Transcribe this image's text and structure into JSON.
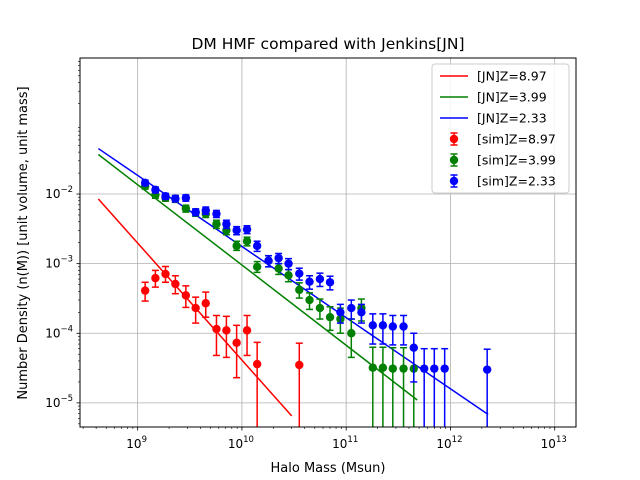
{
  "chart_data": {
    "type": "scatter",
    "title": "DM HMF compared with Jenkins[JN]",
    "xlabel": "Halo Mass (Msun)",
    "ylabel": "Number Density (n(M)) [unit volume, unit mass]",
    "xscale": "log",
    "yscale": "log",
    "xlim": [
      280000000.0,
      16000000000000.0
    ],
    "ylim": [
      4.5e-06,
      0.9
    ],
    "xticks": [
      {
        "value": 1000000000.0,
        "label": "10",
        "exp": "9"
      },
      {
        "value": 10000000000.0,
        "label": "10",
        "exp": "10"
      },
      {
        "value": 100000000000.0,
        "label": "10",
        "exp": "11"
      },
      {
        "value": 1000000000000.0,
        "label": "10",
        "exp": "12"
      },
      {
        "value": 10000000000000.0,
        "label": "10",
        "exp": "13"
      }
    ],
    "yticks": [
      {
        "value": 1e-05,
        "label": "10",
        "exp": "−5"
      },
      {
        "value": 0.0001,
        "label": "10",
        "exp": "−4"
      },
      {
        "value": 0.001,
        "label": "10",
        "exp": "−3"
      },
      {
        "value": 0.01,
        "label": "10",
        "exp": "−2"
      }
    ],
    "grid": true,
    "legend_position": "top-right",
    "lines": [
      {
        "name": "[JN]Z=8.97",
        "color": "#ff0000",
        "x": [
          420000000.0,
          30000000000.0
        ],
        "y": [
          0.0085,
          6.5e-06
        ]
      },
      {
        "name": "[JN]Z=3.99",
        "color": "#008000",
        "x": [
          420000000.0,
          480000000000.0
        ],
        "y": [
          0.037,
          1.1e-05
        ]
      },
      {
        "name": "[JN]Z=2.33",
        "color": "#0000ff",
        "x": [
          420000000.0,
          2300000000000.0
        ],
        "y": [
          0.045,
          6.8e-06
        ]
      }
    ],
    "series": [
      {
        "name": "[sim]Z=8.97",
        "color": "#ff0000",
        "x": [
          1180000000.0,
          1480000000.0,
          1850000000.0,
          2300000000.0,
          2900000000.0,
          3600000000.0,
          4500000000.0,
          5700000000.0,
          7100000000.0,
          8900000000.0,
          11200000000.0,
          14000000000.0,
          35500000000.0
        ],
        "y": [
          0.00041,
          0.00062,
          0.00071,
          0.00051,
          0.00035,
          0.00023,
          0.00027,
          0.000115,
          0.00011,
          7.3e-05,
          0.00011,
          3.6e-05,
          3.5e-05
        ],
        "lo": [
          0.00029,
          0.00046,
          0.00054,
          0.00037,
          0.000235,
          0.00014,
          0.00017,
          4.8e-05,
          4.5e-05,
          2.3e-05,
          4.8e-05,
          2e-06,
          2e-06
        ],
        "hi": [
          0.00054,
          0.0008,
          0.00091,
          0.00067,
          0.00048,
          0.00033,
          0.00039,
          0.00018,
          0.000175,
          0.00013,
          0.00018,
          7.4e-05,
          7.2e-05
        ]
      },
      {
        "name": "[sim]Z=3.99",
        "color": "#008000",
        "x": [
          1180000000.0,
          1480000000.0,
          1850000000.0,
          2300000000.0,
          2900000000.0,
          3600000000.0,
          4500000000.0,
          5700000000.0,
          7100000000.0,
          8900000000.0,
          11200000000.0,
          14000000000.0,
          18000000000.0,
          22500000000.0,
          28000000000.0,
          35500000000.0,
          44500000000.0,
          56000000000.0,
          70000000000.0,
          88000000000.0,
          112000000000.0,
          140000000000.0,
          180000000000.0,
          225000000000.0,
          280000000000.0,
          355000000000.0,
          445000000000.0
        ],
        "y": [
          0.013,
          0.0097,
          0.0088,
          0.0085,
          0.0062,
          0.0054,
          0.0052,
          0.0037,
          0.003,
          0.0018,
          0.0021,
          0.0009,
          0.0011,
          0.00085,
          0.00068,
          0.00042,
          0.0003,
          0.00023,
          0.00017,
          0.00016,
          0.0001,
          0.00023,
          3.2e-05,
          3.2e-05,
          3.1e-05,
          3.1e-05,
          3.1e-05
        ],
        "lo": [
          0.0118,
          0.0087,
          0.0079,
          0.0076,
          0.0055,
          0.0048,
          0.0046,
          0.0032,
          0.0026,
          0.00155,
          0.0018,
          0.00075,
          0.0009,
          0.0007,
          0.00055,
          0.00032,
          0.00022,
          0.00016,
          0.00011,
          0.0001,
          4.5e-05,
          0.00015,
          2e-06,
          2e-06,
          2e-06,
          2e-06,
          2e-06
        ],
        "hi": [
          0.0143,
          0.0108,
          0.0098,
          0.0095,
          0.0069,
          0.0061,
          0.0058,
          0.0042,
          0.0034,
          0.0021,
          0.0024,
          0.00107,
          0.0013,
          0.001,
          0.00082,
          0.00053,
          0.00038,
          0.00031,
          0.00024,
          0.00023,
          0.00016,
          0.00031,
          6.3e-05,
          6.3e-05,
          6.2e-05,
          6.2e-05,
          6.2e-05
        ]
      },
      {
        "name": "[sim]Z=2.33",
        "color": "#0000ff",
        "x": [
          1180000000.0,
          1480000000.0,
          1850000000.0,
          2300000000.0,
          2900000000.0,
          3600000000.0,
          4500000000.0,
          5700000000.0,
          7100000000.0,
          8900000000.0,
          11200000000.0,
          14000000000.0,
          18000000000.0,
          22500000000.0,
          28000000000.0,
          35500000000.0,
          44500000000.0,
          56000000000.0,
          70000000000.0,
          88000000000.0,
          112000000000.0,
          140000000000.0,
          180000000000.0,
          225000000000.0,
          280000000000.0,
          355000000000.0,
          445000000000.0,
          560000000000.0,
          700000000000.0,
          880000000000.0,
          2250000000000.0
        ],
        "y": [
          0.0145,
          0.0115,
          0.0093,
          0.0086,
          0.0088,
          0.0055,
          0.0058,
          0.0052,
          0.0037,
          0.003,
          0.0031,
          0.0018,
          0.0011,
          0.0012,
          0.001,
          0.00072,
          0.00055,
          0.0006,
          0.00054,
          0.0002,
          0.00023,
          0.0002,
          0.00013,
          0.00013,
          0.000125,
          0.000125,
          6.2e-05,
          3.1e-05,
          3.1e-05,
          3.1e-05,
          3e-05
        ],
        "lo": [
          0.0132,
          0.0104,
          0.0084,
          0.0077,
          0.0079,
          0.0049,
          0.0051,
          0.0046,
          0.0032,
          0.0026,
          0.0027,
          0.0015,
          0.0009,
          0.001,
          0.00082,
          0.00058,
          0.00043,
          0.00047,
          0.00042,
          0.00014,
          0.00016,
          0.00014,
          7e-05,
          7e-05,
          6.8e-05,
          6.8e-05,
          2e-05,
          2e-06,
          2e-06,
          2e-06,
          2e-06
        ],
        "hi": [
          0.0158,
          0.0126,
          0.0102,
          0.0095,
          0.0097,
          0.0061,
          0.0065,
          0.0058,
          0.0042,
          0.0034,
          0.0035,
          0.0021,
          0.0013,
          0.0014,
          0.00118,
          0.00086,
          0.00067,
          0.00073,
          0.00066,
          0.00026,
          0.0003,
          0.00026,
          0.00019,
          0.00019,
          0.00018,
          0.00018,
          0.0001,
          6e-05,
          6e-05,
          6e-05,
          5.9e-05
        ]
      }
    ]
  }
}
